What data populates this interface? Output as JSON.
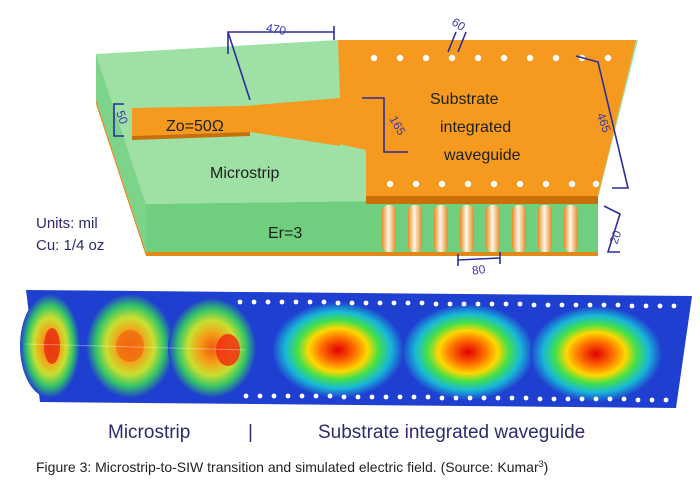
{
  "diagram": {
    "dimensions": {
      "strip_length": "470",
      "via_pitch": "60",
      "strip_width": "50",
      "taper_width": "165",
      "siw_width": "465",
      "substrate_height": "20",
      "via_diameter": "80"
    },
    "impedance_label": "Zo=50Ω",
    "microstrip_label": "Microstrip",
    "siw_label_lines": [
      "Substrate",
      "integrated",
      "waveguide"
    ],
    "er_label": "Er=3",
    "units_lines": [
      "Units: mil",
      "Cu: 1/4 oz"
    ]
  },
  "field_plot": {
    "left_label": "Microstrip",
    "divider": "|",
    "right_label": "Substrate integrated waveguide"
  },
  "caption": {
    "text": "Figure 3: Microstrip-to-SIW transition and simulated electric field. (Source: Kumar",
    "superscript": "3",
    "close": ")"
  },
  "colors": {
    "substrate_top": "#9fe0a4",
    "substrate_front": "#6fcf7e",
    "copper": "#f59a1e",
    "copper_edge": "#c96f08",
    "dimension_ink": "#2d2d9a",
    "field_low": "#1f3fd0"
  }
}
